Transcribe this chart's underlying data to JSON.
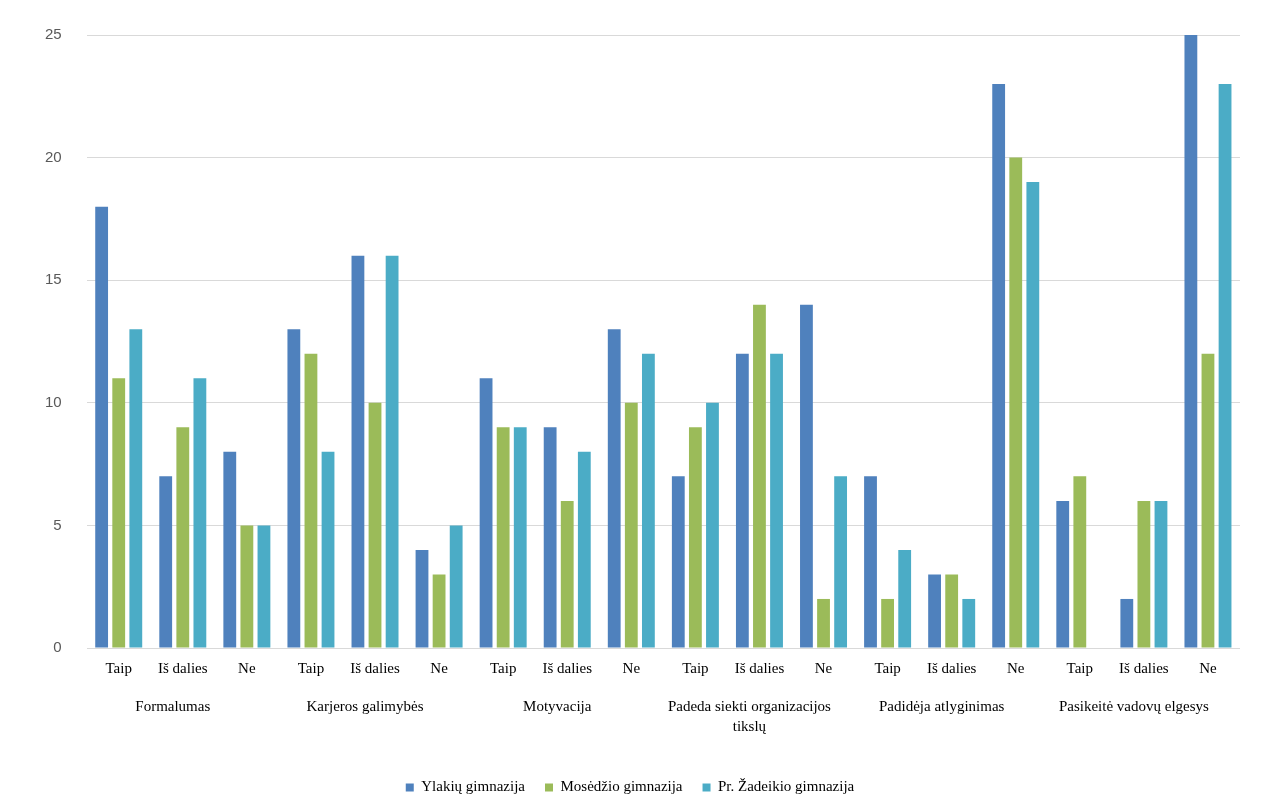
{
  "chart_data": {
    "type": "bar",
    "categories": [
      "Taip",
      "Iš dalies",
      "Ne",
      "Taip",
      "Iš dalies",
      "Ne",
      "Taip",
      "Iš dalies",
      "Ne",
      "Taip",
      "Iš dalies",
      "Ne",
      "Taip",
      "Iš dalies",
      "Ne",
      "Taip",
      "Iš dalies",
      "Ne"
    ],
    "series": [
      {
        "name": "Ylakių gimnazija",
        "color": "#4f81bd",
        "values": [
          18,
          7,
          8,
          13,
          16,
          4,
          11,
          9,
          13,
          7,
          12,
          14,
          7,
          3,
          23,
          6,
          2,
          25
        ]
      },
      {
        "name": "Mosėdžio gimnazija",
        "color": "#9bbb59",
        "values": [
          11,
          9,
          5,
          12,
          10,
          3,
          9,
          6,
          10,
          9,
          14,
          2,
          2,
          3,
          20,
          7,
          6,
          12
        ]
      },
      {
        "name": "Pr. Žadeikio gimnazija",
        "color": "#4bacc6",
        "values": [
          13,
          11,
          5,
          8,
          16,
          5,
          9,
          8,
          12,
          10,
          12,
          7,
          4,
          2,
          19,
          0,
          6,
          23
        ]
      }
    ],
    "annotations": [
      "Formalumas",
      "Karjeros galimybės",
      "Motyvacija",
      "Padeda siekti organizacijos tikslų",
      "Padidėja atlyginimas",
      "Pasikeitė vadovų elgesys"
    ],
    "ylim": [
      0,
      25
    ],
    "yticks": [
      0,
      5,
      10,
      15,
      20,
      25
    ],
    "grid": "y",
    "legend": "bottom"
  }
}
